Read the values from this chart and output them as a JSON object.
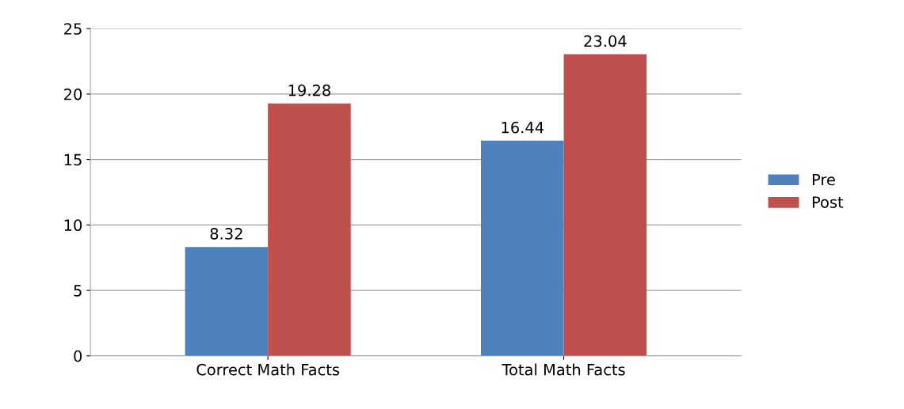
{
  "chart_data": {
    "type": "bar",
    "categories": [
      "Correct Math Facts",
      "Total Math Facts"
    ],
    "series": [
      {
        "name": "Pre",
        "color": "#4f81bd",
        "values": [
          8.32,
          16.44
        ]
      },
      {
        "name": "Post",
        "color": "#c0504d",
        "values": [
          19.28,
          23.04
        ]
      }
    ],
    "ylim": [
      0,
      25
    ],
    "yticks": [
      0,
      5,
      10,
      15,
      20,
      25
    ],
    "grid": "y",
    "legend": "right",
    "data_labels": true
  }
}
